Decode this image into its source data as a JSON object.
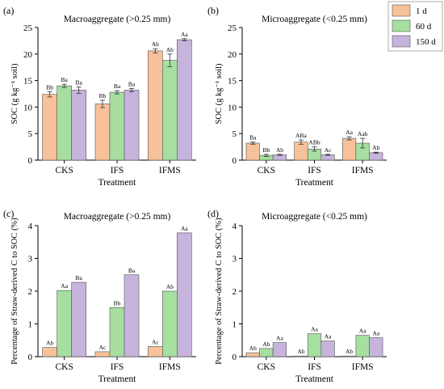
{
  "colors": {
    "s1": "#f7c199",
    "s2": "#a6dfa0",
    "s3": "#c6b4dc"
  },
  "legend": [
    "1 d",
    "60 d",
    "150 d"
  ],
  "chart_data": [
    {
      "panel_label": "(a)",
      "type": "bar",
      "title": "Macroaggregate (>0.25 mm)",
      "xlabel": "Treatment",
      "ylabel": "SOC (g kg⁻¹ soil)",
      "ylim": [
        0,
        25
      ],
      "yticks": [
        "0",
        "5",
        "10",
        "15",
        "20",
        "25"
      ],
      "categories": [
        "CKS",
        "IFS",
        "IFMS"
      ],
      "series": [
        {
          "name": "1 d",
          "values": [
            12.4,
            10.6,
            20.6
          ],
          "errors": [
            0.5,
            0.7,
            0.4
          ],
          "labels": [
            "Bb",
            "Bb",
            "Ab"
          ]
        },
        {
          "name": "60 d",
          "values": [
            14.0,
            12.8,
            18.8
          ],
          "errors": [
            0.3,
            0.3,
            1.2
          ],
          "labels": [
            "Ba",
            "Ba",
            "Ab"
          ]
        },
        {
          "name": "150 d",
          "values": [
            13.2,
            13.2,
            22.7
          ],
          "errors": [
            0.6,
            0.3,
            0.2
          ],
          "labels": [
            "Ba",
            "Ba",
            "Aa"
          ]
        }
      ]
    },
    {
      "panel_label": "(b)",
      "type": "bar",
      "title": "Microaggregate (<0.25 mm)",
      "xlabel": "Treatment",
      "ylabel": "SOC (g kg⁻¹ soil)",
      "ylim": [
        0,
        25
      ],
      "yticks": [
        "0",
        "5",
        "10",
        "15",
        "20",
        "25"
      ],
      "categories": [
        "CKS",
        "IFS",
        "IFMS"
      ],
      "series": [
        {
          "name": "1 d",
          "values": [
            3.2,
            3.4,
            4.1
          ],
          "errors": [
            0.2,
            0.4,
            0.3
          ],
          "labels": [
            "Ba",
            "ABa",
            "Aa"
          ]
        },
        {
          "name": "60 d",
          "values": [
            0.9,
            2.1,
            3.2
          ],
          "errors": [
            0.2,
            0.4,
            0.9
          ],
          "labels": [
            "Bb",
            "ABb",
            "Aab"
          ]
        },
        {
          "name": "150 d",
          "values": [
            1.0,
            1.0,
            1.4
          ],
          "errors": [
            0.1,
            0.1,
            0.1
          ],
          "labels": [
            "Ab",
            "Ac",
            "Ab"
          ]
        }
      ]
    },
    {
      "panel_label": "(c)",
      "type": "bar",
      "title": "Macroaggregate (>0.25 mm)",
      "xlabel": "Treatment",
      "ylabel": "Percentage of Straw-derived C to SOC (%)",
      "ylim": [
        0,
        4
      ],
      "yticks": [
        "0",
        "1",
        "2",
        "3",
        "4"
      ],
      "categories": [
        "CKS",
        "IFS",
        "IFMS"
      ],
      "series": [
        {
          "name": "1 d",
          "values": [
            0.28,
            0.15,
            0.31
          ],
          "errors": [
            0,
            0,
            0
          ],
          "labels": [
            "Ab",
            "Ac",
            "Ac"
          ]
        },
        {
          "name": "60 d",
          "values": [
            2.02,
            1.5,
            2.0
          ],
          "errors": [
            0,
            0,
            0
          ],
          "labels": [
            "Aa",
            "Bb",
            "Ab"
          ]
        },
        {
          "name": "150 d",
          "values": [
            2.27,
            2.5,
            3.78
          ],
          "errors": [
            0,
            0,
            0
          ],
          "labels": [
            "Ba",
            "Ba",
            "Aa"
          ]
        }
      ]
    },
    {
      "panel_label": "(d)",
      "type": "bar",
      "title": "Microaggregate (<0.25 mm)",
      "xlabel": "Treatment",
      "ylabel": "Percentage of Straw-derived C to SOC (%)",
      "ylim": [
        0,
        4
      ],
      "yticks": [
        "0",
        "1",
        "2",
        "3",
        "4"
      ],
      "categories": [
        "CKS",
        "IFS",
        "IFMS"
      ],
      "series": [
        {
          "name": "1 d",
          "values": [
            0.12,
            0.02,
            0.02
          ],
          "errors": [
            0,
            0,
            0
          ],
          "labels": [
            "Ab",
            "Ab",
            "Ab"
          ]
        },
        {
          "name": "60 d",
          "values": [
            0.25,
            0.7,
            0.65
          ],
          "errors": [
            0,
            0,
            0
          ],
          "labels": [
            "Ab",
            "Aa",
            "Aa"
          ]
        },
        {
          "name": "150 d",
          "values": [
            0.43,
            0.48,
            0.58
          ],
          "errors": [
            0,
            0,
            0
          ],
          "labels": [
            "Aa",
            "Aa",
            "Aa"
          ]
        }
      ]
    }
  ]
}
